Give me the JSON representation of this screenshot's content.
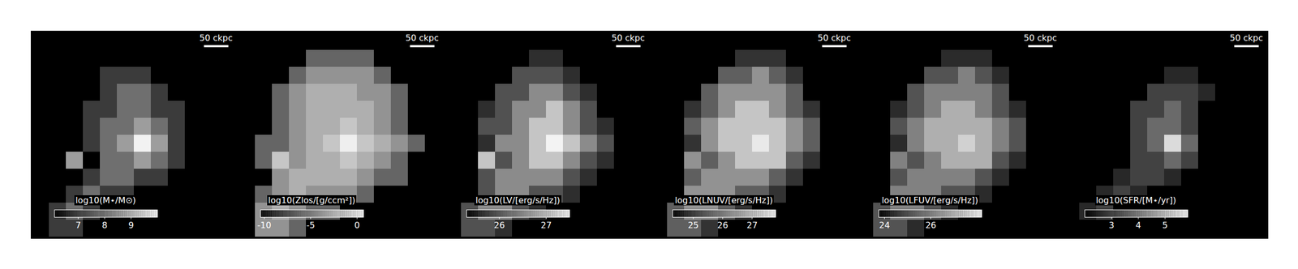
{
  "chart_data": [
    {
      "type": "heatmap",
      "colorbar_label": "log10(M⋆/M⊙)",
      "colorbar_lim": [
        6.1,
        10
      ],
      "colorbar_ticks": [
        7,
        8,
        9
      ],
      "scale_bar": "50 ckpc",
      "colors": [
        "#000000",
        "#ffffff"
      ],
      "cells": [
        [
          null,
          null,
          null,
          null,
          null,
          null,
          null,
          null,
          null,
          null,
          null,
          null
        ],
        [
          null,
          null,
          null,
          null,
          null,
          null,
          null,
          null,
          null,
          null,
          null,
          null
        ],
        [
          null,
          null,
          null,
          null,
          7,
          7,
          7,
          null,
          null,
          null,
          null,
          null
        ],
        [
          null,
          null,
          null,
          null,
          7,
          7.8,
          7.8,
          7,
          null,
          null,
          null,
          null
        ],
        [
          null,
          null,
          null,
          7,
          7,
          7.8,
          7.8,
          7,
          7,
          null,
          null,
          null
        ],
        [
          null,
          null,
          null,
          7,
          7.8,
          7.8,
          8.5,
          7.8,
          7,
          null,
          null,
          null
        ],
        [
          null,
          null,
          null,
          7,
          7.8,
          8.5,
          9.8,
          8.5,
          7,
          null,
          null,
          null
        ],
        [
          null,
          null,
          8.5,
          null,
          7.8,
          7.8,
          8.5,
          7.8,
          7,
          null,
          null,
          null
        ],
        [
          null,
          null,
          null,
          7,
          7.8,
          7.8,
          7,
          7,
          null,
          null,
          null,
          null
        ],
        [
          null,
          null,
          7,
          7.8,
          7,
          7,
          null,
          null,
          null,
          null,
          null,
          null
        ],
        [
          null,
          7,
          7.8,
          7,
          null,
          null,
          null,
          null,
          null,
          null,
          null,
          null
        ],
        [
          null,
          7,
          7,
          null,
          null,
          null,
          null,
          null,
          null,
          null,
          null,
          null
        ]
      ]
    },
    {
      "type": "heatmap",
      "colorbar_label": "log10(Zlos/[g/ccm²])",
      "colorbar_lim": [
        -10.4,
        0.7
      ],
      "colorbar_ticks": [
        -10,
        -5,
        0
      ],
      "scale_bar": "50 ckpc",
      "colors": [
        "#000000",
        "#ffffff"
      ],
      "cells": [
        [
          null,
          null,
          null,
          null,
          null,
          null,
          null,
          null,
          null,
          null,
          null,
          null
        ],
        [
          null,
          null,
          null,
          null,
          -6,
          -6,
          -6,
          -6,
          null,
          null,
          null,
          null
        ],
        [
          null,
          null,
          null,
          -6,
          -4,
          -4,
          -4,
          -4,
          -6,
          null,
          null,
          null
        ],
        [
          null,
          null,
          -6,
          -4,
          -2.8,
          -2.8,
          -2.8,
          -4,
          -4,
          -6,
          null,
          null
        ],
        [
          null,
          null,
          -6,
          -4,
          -2.8,
          -2.8,
          -2.8,
          -2.8,
          -4,
          -6,
          null,
          null
        ],
        [
          null,
          null,
          -6,
          -4,
          -2.8,
          -2.8,
          -1.8,
          -2.8,
          -4,
          -6,
          null,
          null
        ],
        [
          null,
          -6,
          -6,
          -4,
          -2.8,
          -1.8,
          0,
          -1.8,
          -2.8,
          -4,
          -6,
          null
        ],
        [
          null,
          -6,
          -1.8,
          -4,
          -2.8,
          -2.8,
          -1.8,
          -2.8,
          -4,
          -6,
          null,
          null
        ],
        [
          null,
          null,
          -4,
          -2.8,
          -2.8,
          -2.8,
          -2.8,
          -4,
          -6,
          -6,
          null,
          null
        ],
        [
          null,
          -6,
          -4,
          -2.8,
          -4,
          -4,
          -4,
          -6,
          null,
          null,
          null,
          null
        ],
        [
          null,
          -4,
          -2.8,
          -4,
          -6,
          -6,
          null,
          null,
          null,
          null,
          null,
          null
        ],
        [
          null,
          -4,
          -4,
          -6,
          null,
          null,
          null,
          null,
          null,
          null,
          null,
          null
        ]
      ]
    },
    {
      "type": "heatmap",
      "colorbar_label": "log10(LV/[erg/s/Hz])",
      "colorbar_lim": [
        25.3,
        27.5
      ],
      "colorbar_ticks": [
        26,
        27
      ],
      "scale_bar": "50 ckpc",
      "colors": [
        "#000000",
        "#ffffff"
      ],
      "cells": [
        [
          null,
          null,
          null,
          null,
          null,
          null,
          null,
          null,
          null,
          null,
          null,
          null
        ],
        [
          null,
          null,
          null,
          null,
          null,
          25.7,
          25.7,
          null,
          null,
          null,
          null,
          null
        ],
        [
          null,
          null,
          null,
          null,
          26,
          26,
          26,
          25.7,
          null,
          null,
          null,
          null
        ],
        [
          null,
          null,
          null,
          26,
          26,
          26.5,
          26.5,
          26,
          25.7,
          null,
          null,
          null
        ],
        [
          null,
          null,
          25.7,
          26,
          26.5,
          26.5,
          27,
          26.5,
          26,
          null,
          null,
          null
        ],
        [
          null,
          null,
          26,
          26,
          26.5,
          27,
          27,
          26.5,
          26,
          25.7,
          null,
          null
        ],
        [
          null,
          null,
          25.7,
          26.5,
          26.5,
          27,
          27.4,
          27,
          26.5,
          26,
          null,
          null
        ],
        [
          null,
          null,
          27,
          26,
          26.5,
          27,
          27,
          26.5,
          26,
          25.7,
          null,
          null
        ],
        [
          null,
          null,
          26,
          26.5,
          26.5,
          26.5,
          26.5,
          26,
          25.7,
          null,
          null,
          null
        ],
        [
          null,
          null,
          26,
          26.5,
          26.5,
          26,
          26,
          25.7,
          null,
          null,
          null,
          null
        ],
        [
          null,
          26,
          26.5,
          26.5,
          26,
          25.7,
          null,
          null,
          null,
          null,
          null,
          null
        ],
        [
          null,
          26,
          26,
          25.7,
          null,
          null,
          null,
          null,
          null,
          null,
          null,
          null
        ]
      ]
    },
    {
      "type": "heatmap",
      "colorbar_label": "log10(LNUV/[erg/s/Hz])",
      "colorbar_lim": [
        24.3,
        27.8
      ],
      "colorbar_ticks": [
        25,
        26,
        27
      ],
      "scale_bar": "50 ckpc",
      "colors": [
        "#000000",
        "#ffffff"
      ],
      "cells": [
        [
          null,
          null,
          null,
          null,
          null,
          null,
          null,
          null,
          null,
          null,
          null,
          null
        ],
        [
          null,
          null,
          null,
          null,
          null,
          25,
          25,
          25,
          null,
          null,
          null,
          null
        ],
        [
          null,
          null,
          null,
          null,
          25.6,
          25.6,
          26.3,
          25.6,
          25,
          null,
          null,
          null
        ],
        [
          null,
          null,
          null,
          25.6,
          26.3,
          26.3,
          26.3,
          26.3,
          25.6,
          null,
          null,
          null
        ],
        [
          null,
          null,
          25,
          25.6,
          26.3,
          27,
          27,
          26.3,
          25.6,
          25,
          null,
          null
        ],
        [
          null,
          null,
          25.6,
          26.3,
          27,
          27,
          27,
          27,
          26.3,
          25.6,
          null,
          null
        ],
        [
          null,
          null,
          25,
          26.3,
          27,
          27,
          27.5,
          27,
          26.3,
          25.6,
          null,
          null
        ],
        [
          null,
          null,
          26.3,
          25.6,
          26.3,
          27,
          27,
          27,
          25.6,
          25,
          null,
          null
        ],
        [
          null,
          null,
          25.6,
          26.3,
          26.3,
          26.3,
          26.3,
          25.6,
          25,
          null,
          null,
          null
        ],
        [
          null,
          null,
          26.3,
          26.3,
          26.3,
          25.6,
          25.6,
          25,
          null,
          null,
          null,
          null
        ],
        [
          null,
          25.6,
          26.3,
          26.3,
          25.6,
          25,
          null,
          null,
          null,
          null,
          null,
          null
        ],
        [
          null,
          25.6,
          25.6,
          25,
          null,
          null,
          null,
          null,
          null,
          null,
          null,
          null
        ]
      ]
    },
    {
      "type": "heatmap",
      "colorbar_label": "log10(LFUV/[erg/s/Hz])",
      "colorbar_lim": [
        23.75,
        28.2
      ],
      "colorbar_ticks": [
        24,
        26
      ],
      "scale_bar": "50 ckpc",
      "colors": [
        "#000000",
        "#ffffff"
      ],
      "cells": [
        [
          null,
          null,
          null,
          null,
          null,
          null,
          null,
          null,
          null,
          null,
          null,
          null
        ],
        [
          null,
          null,
          null,
          null,
          null,
          24.5,
          24.5,
          24.5,
          null,
          null,
          null,
          null
        ],
        [
          null,
          null,
          null,
          null,
          25.2,
          25.2,
          26,
          25.2,
          24.5,
          null,
          null,
          null
        ],
        [
          null,
          null,
          null,
          25.2,
          26,
          26,
          26,
          26,
          25.2,
          null,
          null,
          null
        ],
        [
          null,
          null,
          24.5,
          25.2,
          26,
          26.8,
          26.8,
          26,
          25.2,
          24.5,
          null,
          null
        ],
        [
          null,
          null,
          25.2,
          26,
          26.8,
          26.8,
          26.8,
          26.8,
          26,
          25.2,
          null,
          null
        ],
        [
          null,
          null,
          24.5,
          26,
          26.8,
          26.8,
          27.4,
          26.8,
          26,
          25.2,
          null,
          null
        ],
        [
          null,
          null,
          26,
          25.2,
          26,
          26.8,
          26.8,
          26.8,
          25.2,
          24.5,
          null,
          null
        ],
        [
          null,
          null,
          25.2,
          26,
          26,
          26,
          26,
          25.2,
          24.5,
          null,
          null,
          null
        ],
        [
          null,
          null,
          26,
          26,
          26,
          25.2,
          25.2,
          24.5,
          null,
          null,
          null,
          null
        ],
        [
          null,
          25.2,
          26,
          26,
          25.2,
          24.5,
          null,
          null,
          null,
          null,
          null,
          null
        ],
        [
          null,
          25.2,
          25.2,
          24.5,
          null,
          null,
          null,
          null,
          null,
          null,
          null,
          null
        ]
      ]
    },
    {
      "type": "heatmap",
      "colorbar_label": "log10(SFR/[M⋆/yr])",
      "colorbar_lim": [
        2,
        5.85
      ],
      "colorbar_ticks": [
        3,
        4,
        5
      ],
      "scale_bar": "50 ckpc",
      "colors": [
        "#000000",
        "#ffffff"
      ],
      "cells": [
        [
          null,
          null,
          null,
          null,
          null,
          null,
          null,
          null,
          null,
          null,
          null,
          null
        ],
        [
          null,
          null,
          null,
          null,
          null,
          null,
          null,
          null,
          null,
          null,
          null,
          null
        ],
        [
          null,
          null,
          null,
          null,
          null,
          null,
          2.6,
          2.6,
          null,
          null,
          null,
          null
        ],
        [
          null,
          null,
          null,
          null,
          null,
          3,
          3,
          3,
          2.6,
          null,
          null,
          null
        ],
        [
          null,
          null,
          null,
          null,
          3,
          3,
          3.6,
          3,
          null,
          null,
          null,
          null
        ],
        [
          null,
          null,
          null,
          null,
          3,
          3.6,
          3.6,
          3,
          null,
          null,
          null,
          null
        ],
        [
          null,
          null,
          null,
          null,
          3,
          3.6,
          5.3,
          3.6,
          null,
          null,
          null,
          null
        ],
        [
          null,
          null,
          null,
          null,
          3,
          3,
          3.6,
          3,
          null,
          null,
          null,
          null
        ],
        [
          null,
          null,
          null,
          2.6,
          3,
          3,
          2.6,
          null,
          null,
          null,
          null,
          null
        ],
        [
          null,
          null,
          2.6,
          3,
          2.6,
          null,
          null,
          null,
          null,
          null,
          null,
          null
        ],
        [
          null,
          2.6,
          3,
          null,
          null,
          null,
          null,
          null,
          null,
          null,
          null,
          null
        ],
        [
          null,
          null,
          null,
          null,
          null,
          null,
          null,
          null,
          null,
          null,
          null,
          null
        ]
      ]
    }
  ]
}
